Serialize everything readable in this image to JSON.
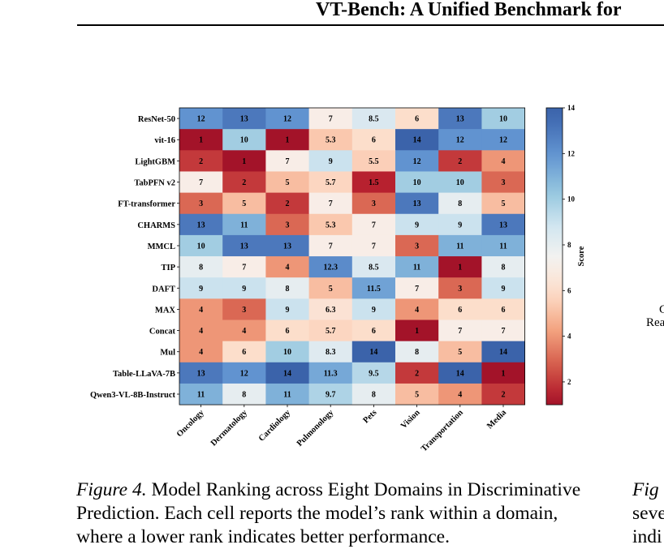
{
  "header": {
    "running_title": "VT-Bench: A Unified Benchmark for"
  },
  "chart_data": {
    "type": "heatmap",
    "rows": [
      "ResNet-50",
      "vit-16",
      "LightGBM",
      "TabPFN v2",
      "FT-transformer",
      "CHARMS",
      "MMCL",
      "TIP",
      "DAFT",
      "MAX",
      "Concat",
      "Mul",
      "Table-LLaVA-7B",
      "Qwen3-VL-8B-Instruct"
    ],
    "columns": [
      "Oncology",
      "Dermatology",
      "Cardiology",
      "Pulmonology",
      "Pets",
      "Vision",
      "Transportation",
      "Media"
    ],
    "values": [
      [
        12,
        13,
        12,
        7,
        8.5,
        6,
        13,
        10
      ],
      [
        1,
        10,
        1,
        5.3,
        6,
        14,
        12,
        12
      ],
      [
        2,
        1,
        7,
        9,
        5.5,
        12,
        2,
        4
      ],
      [
        7,
        2,
        5,
        5.7,
        1.5,
        10,
        10,
        3
      ],
      [
        3,
        5,
        2,
        7,
        3,
        13,
        8,
        5
      ],
      [
        13,
        11,
        3,
        5.3,
        7,
        9,
        9,
        13
      ],
      [
        10,
        13,
        13,
        7,
        7,
        3,
        11,
        11
      ],
      [
        8,
        7,
        4,
        12.3,
        8.5,
        11,
        1,
        8
      ],
      [
        9,
        9,
        8,
        5,
        11.5,
        7,
        3,
        9
      ],
      [
        4,
        3,
        9,
        6.3,
        9,
        4,
        6,
        6
      ],
      [
        4,
        4,
        6,
        5.7,
        6,
        1,
        7,
        7
      ],
      [
        4,
        6,
        10,
        8.3,
        14,
        8,
        5,
        14
      ],
      [
        13,
        12,
        14,
        11.3,
        9.5,
        2,
        14,
        1
      ],
      [
        11,
        8,
        11,
        9.7,
        8,
        5,
        4,
        2
      ]
    ],
    "colorbar": {
      "label": "Score",
      "range": [
        1,
        14
      ],
      "ticks": [
        "2",
        "4",
        "6",
        "8",
        "10",
        "12",
        "14"
      ],
      "colormap": "RdBu",
      "low_color": "#8c1d23",
      "mid_color": "#f6f3f0",
      "high_color": "#3a58a0"
    },
    "legend_position": "right"
  },
  "caption": {
    "figure_number": "Figure 4.",
    "text": " Model Ranking across Eight Domains in Discriminative Prediction. Each cell reports the model’s rank within a domain, where a lower rank indicates better performance."
  },
  "right_column": {
    "fragment_1": "C",
    "fragment_2": "Rea",
    "caption_figure": "Fig",
    "caption_line_2": "seve",
    "caption_line_3": "indi"
  }
}
